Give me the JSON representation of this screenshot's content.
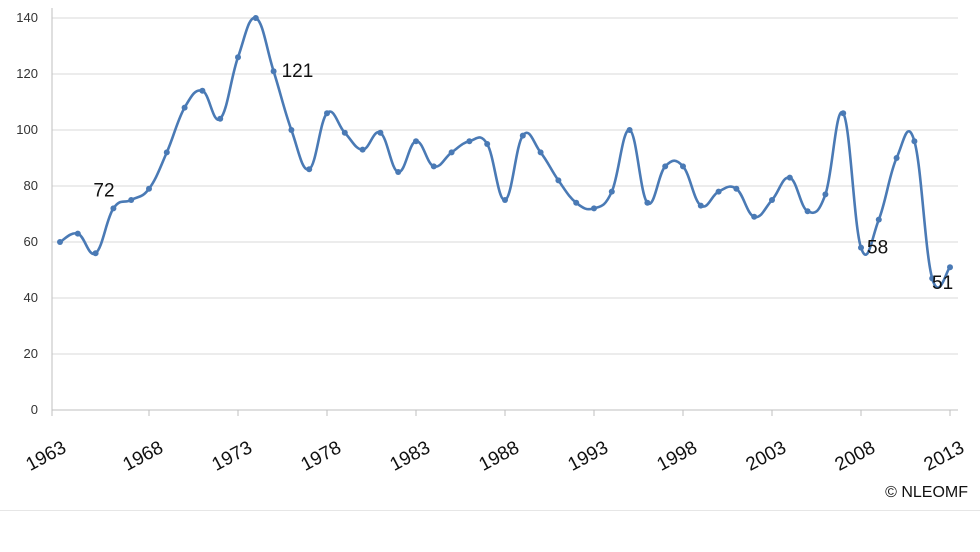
{
  "chart_data": {
    "type": "line",
    "x": [
      1963,
      1964,
      1965,
      1966,
      1967,
      1968,
      1969,
      1970,
      1971,
      1972,
      1973,
      1974,
      1975,
      1976,
      1977,
      1978,
      1979,
      1980,
      1981,
      1982,
      1983,
      1984,
      1985,
      1986,
      1987,
      1988,
      1989,
      1990,
      1991,
      1992,
      1993,
      1994,
      1995,
      1996,
      1997,
      1998,
      1999,
      2000,
      2001,
      2002,
      2003,
      2004,
      2005,
      2006,
      2007,
      2008,
      2009,
      2010,
      2011,
      2012,
      2013
    ],
    "series": [
      {
        "values": [
          60,
          63,
          56,
          72,
          75,
          79,
          92,
          108,
          114,
          104,
          126,
          140,
          121,
          100,
          86,
          106,
          99,
          93,
          99,
          85,
          96,
          87,
          92,
          96,
          95,
          75,
          98,
          92,
          82,
          74,
          72,
          78,
          100,
          74,
          87,
          87,
          73,
          78,
          79,
          69,
          75,
          83,
          71,
          77,
          106,
          58,
          68,
          90,
          96,
          47,
          51
        ],
        "color": "#4a7ab5"
      }
    ],
    "x_tick_labels": [
      "1963",
      "1968",
      "1973",
      "1978",
      "1983",
      "1988",
      "1993",
      "1998",
      "2003",
      "2008",
      "2013"
    ],
    "y_ticks": [
      0,
      20,
      40,
      60,
      80,
      100,
      120,
      140
    ],
    "ylim": [
      0,
      140
    ],
    "xlim": [
      1963,
      2013
    ],
    "grid": true,
    "legend": "none",
    "title": "",
    "xlabel": "",
    "ylabel": "",
    "data_labels": [
      {
        "x": 1966,
        "text": "72"
      },
      {
        "x": 1975,
        "text": "121"
      },
      {
        "x": 2008,
        "text": "58"
      },
      {
        "x": 2013,
        "text": "51"
      }
    ]
  },
  "credit": "© NLEOMF",
  "colors": {
    "line": "#4a7ab5",
    "grid": "#d9d9d9",
    "axis": "#bfbfbf"
  }
}
